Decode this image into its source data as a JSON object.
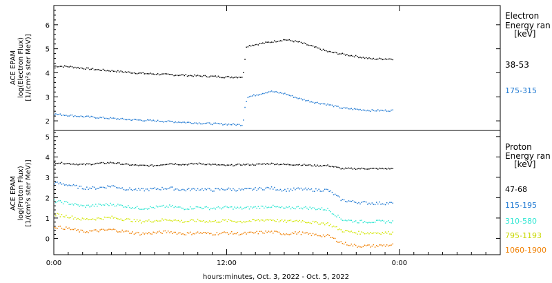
{
  "chart_data": [
    {
      "type": "scatter",
      "panel": "electron",
      "ylabel_lines": [
        "ACE EPAM",
        "log(Electron Flux)",
        "[1/(cm²s ster MeV)]"
      ],
      "ylim": [
        1.6,
        6.8
      ],
      "yticks": [
        "2",
        "3",
        "4",
        "5",
        "6"
      ],
      "legend_title": [
        "Electron",
        "Energy ran"
      ],
      "legend_unit": "[keV]",
      "series": [
        {
          "name": "38-53",
          "color": "#000000",
          "x": [
            0,
            1,
            2,
            3,
            4,
            5,
            6,
            7,
            8,
            9,
            10,
            11,
            12,
            13.1,
            13.2,
            13.3,
            13.5,
            14,
            15,
            16,
            17,
            18,
            19,
            20,
            21,
            22,
            23.5
          ],
          "y": [
            4.3,
            4.28,
            4.21,
            4.15,
            4.1,
            4.05,
            4.0,
            3.97,
            3.94,
            3.92,
            3.89,
            3.87,
            3.84,
            3.85,
            4.3,
            5.1,
            5.15,
            5.2,
            5.3,
            5.4,
            5.3,
            5.1,
            4.9,
            4.8,
            4.7,
            4.6,
            4.6
          ]
        },
        {
          "name": "175-315",
          "color": "#1e78d2",
          "x": [
            0,
            1,
            2,
            3,
            4,
            5,
            6,
            7,
            8,
            9,
            10,
            11,
            12,
            13.1,
            13.2,
            13.4,
            14,
            15,
            16,
            17,
            18,
            19,
            20,
            21,
            22,
            23.5
          ],
          "y": [
            2.3,
            2.25,
            2.2,
            2.16,
            2.12,
            2.08,
            2.05,
            2.02,
            1.99,
            1.96,
            1.93,
            1.9,
            1.88,
            1.85,
            2.5,
            3.0,
            3.1,
            3.25,
            3.15,
            2.95,
            2.8,
            2.7,
            2.55,
            2.5,
            2.45,
            2.45
          ]
        }
      ]
    },
    {
      "type": "scatter",
      "panel": "proton",
      "ylabel_lines": [
        "ACE EPAM",
        "log(Proton Flux)",
        "[1/(cm²s ster MeV)]"
      ],
      "ylim": [
        -0.8,
        5.3
      ],
      "yticks": [
        "0",
        "1",
        "2",
        "3",
        "4",
        "5"
      ],
      "legend_title": [
        "Proton",
        "Energy ran"
      ],
      "legend_unit": "[keV]",
      "series": [
        {
          "name": "47-68",
          "color": "#000000",
          "x": [
            0,
            1,
            2,
            3,
            4,
            5,
            6,
            7,
            8,
            9,
            10,
            11,
            12,
            13,
            14,
            15,
            16,
            17,
            18,
            19,
            20,
            21,
            22,
            23.5
          ],
          "y": [
            3.75,
            3.7,
            3.65,
            3.7,
            3.75,
            3.65,
            3.6,
            3.6,
            3.7,
            3.65,
            3.7,
            3.65,
            3.6,
            3.65,
            3.65,
            3.7,
            3.65,
            3.65,
            3.6,
            3.6,
            3.45,
            3.45,
            3.45,
            3.45
          ]
        },
        {
          "name": "115-195",
          "color": "#1e78d2",
          "x": [
            0,
            1,
            2,
            3,
            4,
            5,
            6,
            7,
            8,
            9,
            10,
            11,
            12,
            13,
            14,
            15,
            16,
            17,
            18,
            19,
            20,
            21,
            22,
            23.5
          ],
          "y": [
            2.75,
            2.65,
            2.5,
            2.5,
            2.6,
            2.45,
            2.4,
            2.45,
            2.5,
            2.4,
            2.45,
            2.4,
            2.45,
            2.4,
            2.45,
            2.5,
            2.4,
            2.45,
            2.4,
            2.4,
            1.9,
            1.8,
            1.75,
            1.75
          ]
        },
        {
          "name": "310-580",
          "color": "#2ee6d2",
          "x": [
            0,
            1,
            2,
            3,
            4,
            5,
            6,
            7,
            8,
            9,
            10,
            11,
            12,
            13,
            14,
            15,
            16,
            17,
            18,
            19,
            20,
            21,
            22,
            23.5
          ],
          "y": [
            1.85,
            1.75,
            1.6,
            1.65,
            1.7,
            1.6,
            1.5,
            1.55,
            1.6,
            1.5,
            1.55,
            1.5,
            1.55,
            1.5,
            1.55,
            1.6,
            1.5,
            1.55,
            1.5,
            1.45,
            0.95,
            0.85,
            0.85,
            0.85
          ]
        },
        {
          "name": "795-1193",
          "color": "#d2e600",
          "x": [
            0,
            1,
            2,
            3,
            4,
            5,
            6,
            7,
            8,
            9,
            10,
            11,
            12,
            13,
            14,
            15,
            16,
            17,
            18,
            19,
            20,
            21,
            22,
            23.5
          ],
          "y": [
            1.2,
            1.1,
            0.95,
            1.0,
            1.05,
            0.95,
            0.85,
            0.9,
            0.95,
            0.85,
            0.9,
            0.85,
            0.9,
            0.85,
            0.9,
            0.95,
            0.85,
            0.9,
            0.8,
            0.75,
            0.4,
            0.3,
            0.3,
            0.3
          ]
        },
        {
          "name": "1060-1900",
          "color": "#f07f00",
          "x": [
            0,
            1,
            2,
            3,
            4,
            5,
            6,
            7,
            8,
            9,
            10,
            11,
            12,
            13,
            14,
            15,
            16,
            17,
            18,
            19,
            20,
            21,
            22,
            23.5
          ],
          "y": [
            0.6,
            0.5,
            0.35,
            0.4,
            0.45,
            0.35,
            0.25,
            0.3,
            0.35,
            0.25,
            0.3,
            0.25,
            0.3,
            0.25,
            0.3,
            0.35,
            0.25,
            0.3,
            0.2,
            0.15,
            -0.2,
            -0.35,
            -0.35,
            -0.3
          ]
        }
      ]
    }
  ],
  "x_axis": {
    "xlim": [
      0,
      31
    ],
    "tick_values": [
      0,
      12,
      24
    ],
    "tick_labels": [
      "0:00",
      "12:00",
      "0:00"
    ],
    "xlabel": "hours:minutes, Oct.  3, 2022 - Oct.  5, 2022"
  }
}
